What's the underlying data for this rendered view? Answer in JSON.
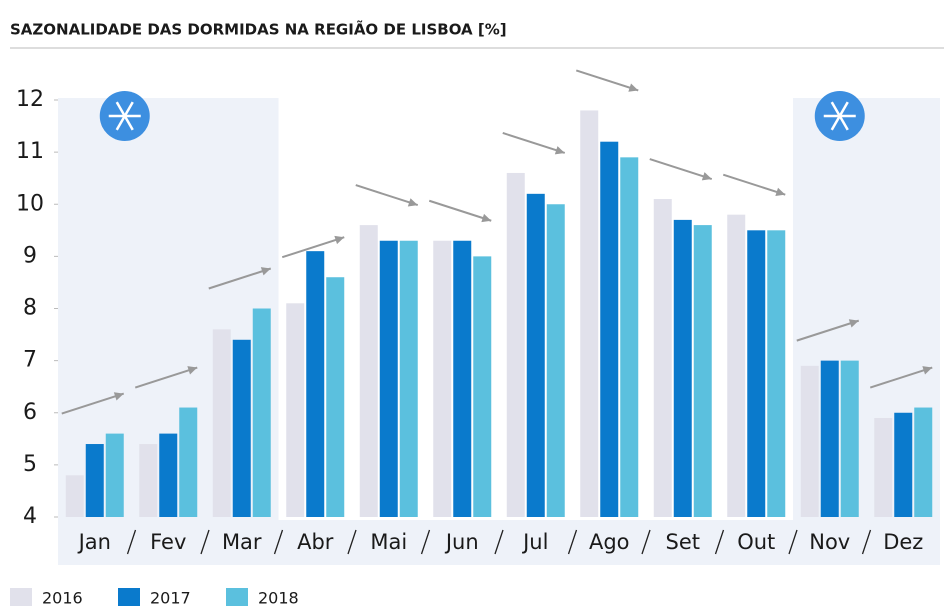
{
  "chart_data": {
    "type": "bar",
    "title": "SAZONALIDADE DAS DORMIDAS NA REGIÃO DE LISBOA [%]",
    "categories": [
      "Jan",
      "Fev",
      "Mar",
      "Abr",
      "Mai",
      "Jun",
      "Jul",
      "Ago",
      "Set",
      "Out",
      "Nov",
      "Dez"
    ],
    "series": [
      {
        "name": "2016",
        "color": "#e1e1eb",
        "values": [
          4.8,
          5.4,
          7.6,
          8.1,
          9.6,
          9.3,
          10.6,
          11.8,
          10.1,
          9.8,
          6.9,
          5.9
        ]
      },
      {
        "name": "2017",
        "color": "#0a7acc",
        "values": [
          5.4,
          5.6,
          7.4,
          9.1,
          9.3,
          9.3,
          10.2,
          11.2,
          9.7,
          9.5,
          7.0,
          6.0
        ]
      },
      {
        "name": "2018",
        "color": "#5bc0de",
        "values": [
          5.6,
          6.1,
          8.0,
          8.6,
          9.3,
          9.0,
          10.0,
          10.9,
          9.6,
          9.5,
          7.0,
          6.1
        ]
      }
    ],
    "ylim": [
      4,
      12
    ],
    "yticks": [
      4,
      5,
      6,
      7,
      8,
      9,
      10,
      11,
      12
    ]
  }
}
